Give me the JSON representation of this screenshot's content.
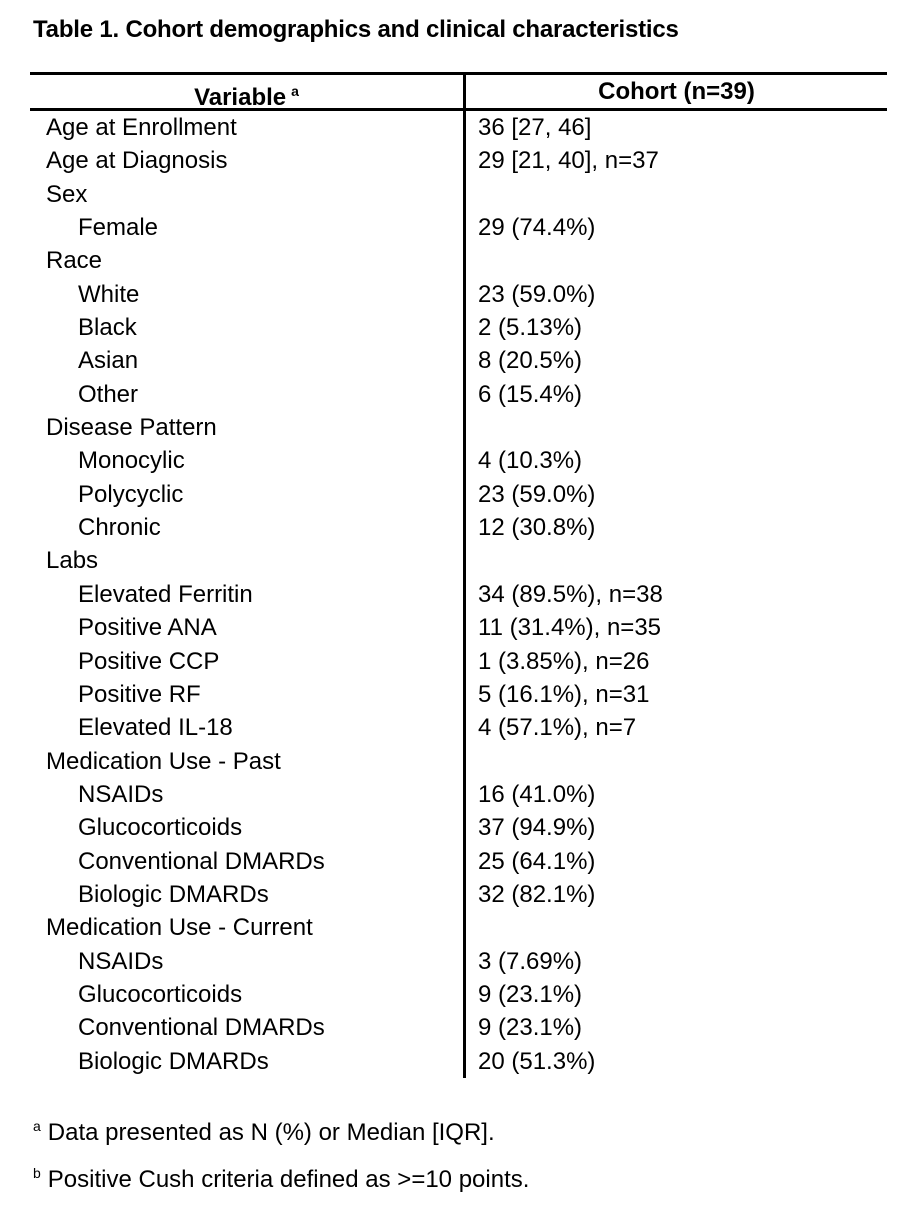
{
  "page": {
    "title": "Table 1. Cohort demographics and clinical characteristics"
  },
  "table": {
    "header": {
      "variable_label": "Variable",
      "variable_superscript": "a",
      "cohort_label": "Cohort (n=39)"
    },
    "rows": [
      {
        "label": "Age at Enrollment",
        "value": "36 [27, 46]",
        "indent": 0
      },
      {
        "label": "Age at Diagnosis",
        "value": "29 [21, 40], n=37",
        "indent": 0
      },
      {
        "label": "Sex",
        "value": "",
        "indent": 0
      },
      {
        "label": "Female",
        "value": "29 (74.4%)",
        "indent": 1
      },
      {
        "label": "Race",
        "value": "",
        "indent": 0
      },
      {
        "label": "White",
        "value": "23 (59.0%)",
        "indent": 1
      },
      {
        "label": "Black",
        "value": "2 (5.13%)",
        "indent": 1
      },
      {
        "label": "Asian",
        "value": "8 (20.5%)",
        "indent": 1
      },
      {
        "label": "Other",
        "value": "6 (15.4%)",
        "indent": 1
      },
      {
        "label": "Disease Pattern",
        "value": "",
        "indent": 0
      },
      {
        "label": "Monocylic",
        "value": "4 (10.3%)",
        "indent": 1
      },
      {
        "label": "Polycyclic",
        "value": "23 (59.0%)",
        "indent": 1
      },
      {
        "label": "Chronic",
        "value": "12 (30.8%)",
        "indent": 1
      },
      {
        "label": "Labs",
        "value": "",
        "indent": 0
      },
      {
        "label": "Elevated Ferritin",
        "value": "34 (89.5%), n=38",
        "indent": 1
      },
      {
        "label": "Positive ANA",
        "value": "11 (31.4%), n=35",
        "indent": 1
      },
      {
        "label": "Positive CCP",
        "value": "1 (3.85%), n=26",
        "indent": 1
      },
      {
        "label": "Positive RF",
        "value": "5 (16.1%), n=31",
        "indent": 1
      },
      {
        "label": "Elevated IL-18",
        "value": "4 (57.1%), n=7",
        "indent": 1
      },
      {
        "label": "Medication Use - Past",
        "value": "",
        "indent": 0
      },
      {
        "label": "NSAIDs",
        "value": "16 (41.0%)",
        "indent": 1
      },
      {
        "label": "Glucocorticoids",
        "value": "37 (94.9%)",
        "indent": 1
      },
      {
        "label": "Conventional DMARDs",
        "value": "25 (64.1%)",
        "indent": 1
      },
      {
        "label": "Biologic DMARDs",
        "value": "32 (82.1%)",
        "indent": 1
      },
      {
        "label": "Medication Use - Current",
        "value": "",
        "indent": 0
      },
      {
        "label": "NSAIDs",
        "value": "3 (7.69%)",
        "indent": 1
      },
      {
        "label": "Glucocorticoids",
        "value": "9 (23.1%)",
        "indent": 1
      },
      {
        "label": "Conventional DMARDs",
        "value": "9 (23.1%)",
        "indent": 1
      },
      {
        "label": "Biologic DMARDs",
        "value": "20 (51.3%)",
        "indent": 1
      }
    ]
  },
  "footnotes": [
    {
      "superscript": "a",
      "text": "Data presented as N (%) or Median [IQR]."
    },
    {
      "superscript": "b",
      "text": "Positive Cush criteria defined as >=10 points."
    }
  ],
  "colors": {
    "text": "#000000",
    "background": "#ffffff",
    "rule": "#000000"
  }
}
